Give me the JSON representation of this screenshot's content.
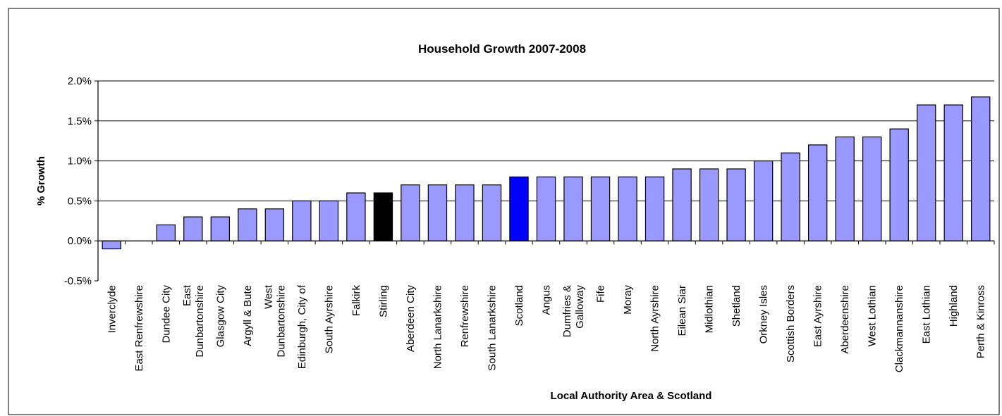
{
  "chart_data": {
    "type": "bar",
    "title": "Household Growth 2007-2008",
    "xlabel": "Local Authority Area & Scotland",
    "ylabel": "% Growth",
    "ylim": [
      -0.5,
      2.0
    ],
    "y_ticks": [
      -0.5,
      0.0,
      0.5,
      1.0,
      1.5,
      2.0
    ],
    "y_tick_labels": [
      "-0.5%",
      "0.0%",
      "0.5%",
      "1.0%",
      "1.5%",
      "2.0%"
    ],
    "grid": true,
    "legend": "none",
    "categories": [
      "Inverclyde",
      "East Renfrewshire",
      "Dundee City",
      "East Dunbartonshire",
      "Glasgow City",
      "Argyll & Bute",
      "West Dunbartonshire",
      "Edinburgh, City of",
      "South Ayrshire",
      "Falkirk",
      "Stirling",
      "Aberdeen City",
      "North Lanarkshire",
      "Renfrewshire",
      "South Lanarkshire",
      "Scotland",
      "Angus",
      "Dumfries & Galloway",
      "Fife",
      "Moray",
      "North Ayrshire",
      "Eilean Siar",
      "Midlothian",
      "Shetland",
      "Orkney Isles",
      "Scottish Borders",
      "East Ayrshire",
      "Aberdeenshire",
      "West Lothian",
      "Clackmannanshire",
      "East Lothian",
      "Highland",
      "Perth & Kinross"
    ],
    "label_lines": [
      [
        "Inverclyde"
      ],
      [
        "East Renfrewshire"
      ],
      [
        "Dundee City"
      ],
      [
        "East",
        "Dunbartonshire"
      ],
      [
        "Glasgow City"
      ],
      [
        "Argyll & Bute"
      ],
      [
        "West",
        "Dunbartonshire"
      ],
      [
        "Edinburgh, City of"
      ],
      [
        "South Ayrshire"
      ],
      [
        "Falkirk"
      ],
      [
        "Stirling"
      ],
      [
        "Aberdeen City"
      ],
      [
        "North Lanarkshire"
      ],
      [
        "Renfrewshire"
      ],
      [
        "South Lanarkshire"
      ],
      [
        "Scotland"
      ],
      [
        "Angus"
      ],
      [
        "Dumfries &",
        "Galloway"
      ],
      [
        "Fife"
      ],
      [
        "Moray"
      ],
      [
        "North Ayrshire"
      ],
      [
        "Eilean Siar"
      ],
      [
        "Midlothian"
      ],
      [
        "Shetland"
      ],
      [
        "Orkney Isles"
      ],
      [
        "Scottish Borders"
      ],
      [
        "East Ayrshire"
      ],
      [
        "Aberdeenshire"
      ],
      [
        "West Lothian"
      ],
      [
        "Clackmannanshire"
      ],
      [
        "East Lothian"
      ],
      [
        "Highland"
      ],
      [
        "Perth & Kinross"
      ]
    ],
    "values": [
      -0.1,
      0.0,
      0.2,
      0.3,
      0.3,
      0.4,
      0.4,
      0.5,
      0.5,
      0.6,
      0.6,
      0.7,
      0.7,
      0.7,
      0.7,
      0.8,
      0.8,
      0.8,
      0.8,
      0.8,
      0.8,
      0.9,
      0.9,
      0.9,
      1.0,
      1.1,
      1.2,
      1.3,
      1.3,
      1.4,
      1.7,
      1.7,
      1.8
    ],
    "colors": {
      "default": "#9999ff",
      "Stirling": "#000000",
      "Scotland": "#0000ff",
      "outline": "#000000",
      "grid": "#000000"
    }
  }
}
